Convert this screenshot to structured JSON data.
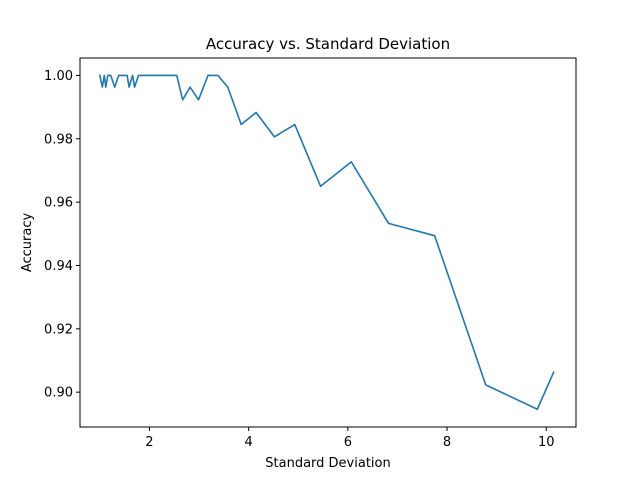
{
  "chart_data": {
    "type": "line",
    "title": "Accuracy vs. Standard Deviation",
    "xlabel": "Standard Deviation",
    "ylabel": "Accuracy",
    "xlim": [
      0.6,
      10.6
    ],
    "ylim": [
      0.889,
      1.0055
    ],
    "xticks": [
      2,
      4,
      6,
      8,
      10
    ],
    "xtick_labels": [
      "2",
      "4",
      "6",
      "8",
      "10"
    ],
    "yticks": [
      0.9,
      0.92,
      0.94,
      0.96,
      0.98,
      1.0
    ],
    "ytick_labels": [
      "0.90",
      "0.92",
      "0.94",
      "0.96",
      "0.98",
      "1.00"
    ],
    "grid": false,
    "series": [
      {
        "color": "#1f77b4",
        "x": [
          1.0,
          1.05,
          1.09,
          1.12,
          1.16,
          1.22,
          1.3,
          1.38,
          1.46,
          1.55,
          1.59,
          1.66,
          1.7,
          1.78,
          1.88,
          2.0,
          2.2,
          2.4,
          2.55,
          2.67,
          2.82,
          2.99,
          3.18,
          3.38,
          3.58,
          3.85,
          4.15,
          4.52,
          4.93,
          5.45,
          6.07,
          6.82,
          7.75,
          8.78,
          9.82,
          10.15
        ],
        "y": [
          1.0,
          0.9963,
          1.0,
          0.9963,
          1.0,
          1.0,
          0.9963,
          1.0,
          1.0,
          1.0,
          0.9963,
          1.0,
          0.9963,
          1.0,
          1.0,
          1.0,
          1.0,
          1.0,
          1.0,
          0.9923,
          0.9963,
          0.9923,
          1.0,
          1.0,
          0.9963,
          0.9845,
          0.9883,
          0.9806,
          0.9845,
          0.965,
          0.9727,
          0.9533,
          0.9494,
          0.9023,
          0.8946,
          0.9063
        ]
      }
    ]
  }
}
